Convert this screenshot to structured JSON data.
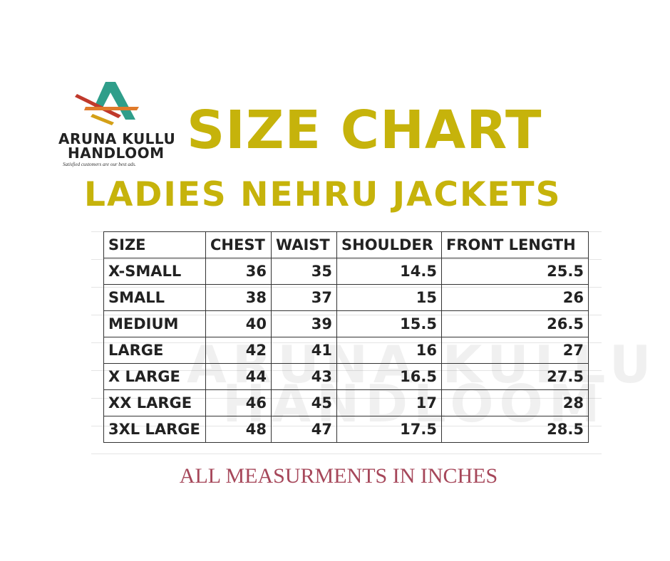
{
  "logo": {
    "line1": "ARUNA KULLU",
    "line2": "HANDLOOM",
    "tagline": "Satisfied customers are our best ads."
  },
  "title": "SIZE CHART",
  "subtitle": "LADIES NEHRU JACKETS",
  "table": {
    "header": [
      "SIZE",
      "CHEST",
      "WAIST",
      "SHOULDER",
      "FRONT LENGTH"
    ],
    "rows": [
      [
        "X-SMALL",
        36,
        35,
        14.5,
        25.5
      ],
      [
        "SMALL",
        38,
        37,
        15,
        26
      ],
      [
        "MEDIUM",
        40,
        39,
        15.5,
        26.5
      ],
      [
        "LARGE",
        42,
        41,
        16,
        27
      ],
      [
        "X LARGE",
        44,
        43,
        16.5,
        27.5
      ],
      [
        "XX LARGE",
        46,
        45,
        17,
        28
      ],
      [
        "3XL LARGE",
        48,
        47,
        17.5,
        28.5
      ]
    ]
  },
  "note": "ALL MEASURMENTS IN INCHES"
}
